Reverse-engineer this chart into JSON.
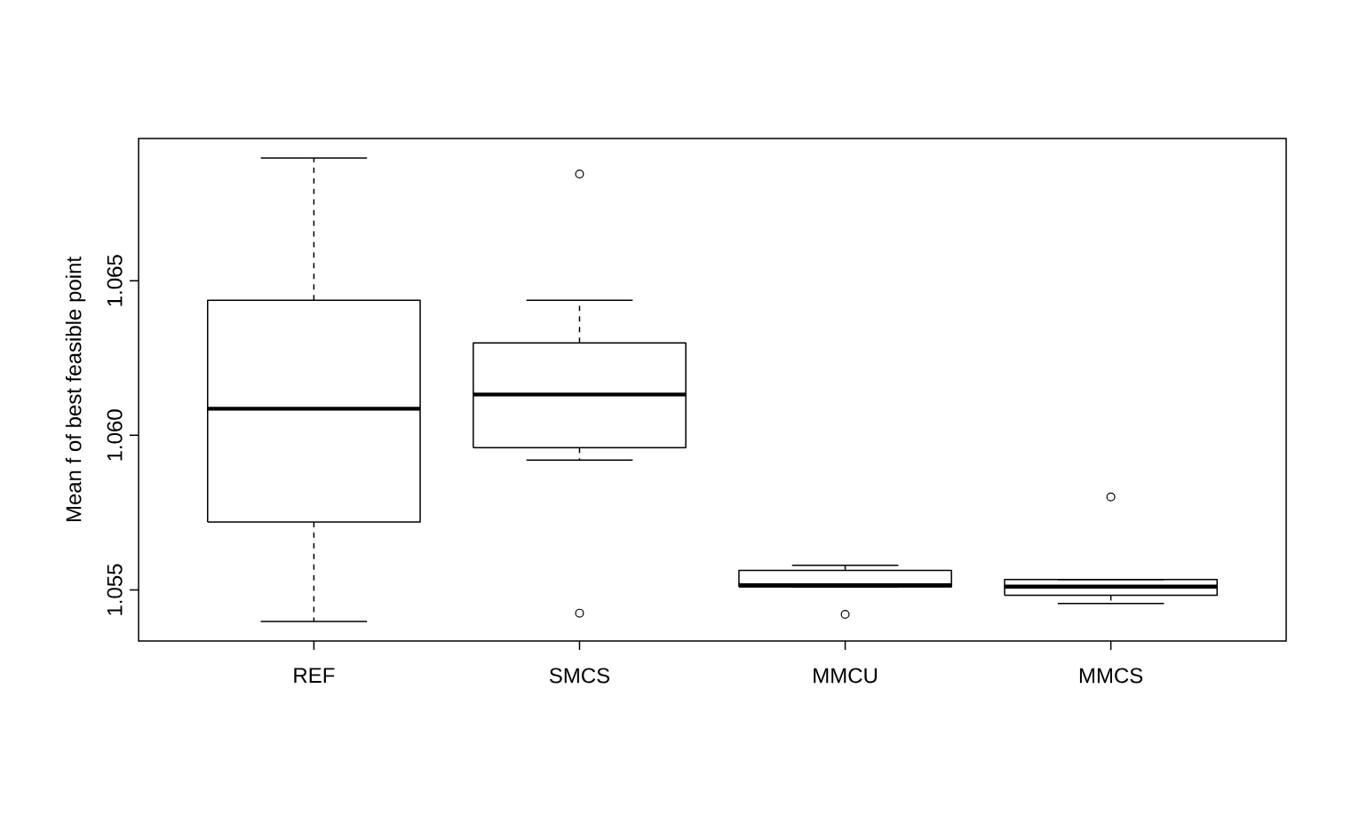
{
  "chart_data": {
    "type": "box",
    "ylabel": "Mean f of best feasible point",
    "categories": [
      "REF",
      "SMCS",
      "MMCU",
      "MMCS"
    ],
    "boxes": [
      {
        "low": 1.05398,
        "q1": 1.0572,
        "median": 1.06086,
        "q3": 1.06437,
        "high": 1.06897
      },
      {
        "low": 1.0592,
        "q1": 1.0596,
        "median": 1.06132,
        "q3": 1.06299,
        "high": 1.06437,
        "outliers": [
          1.06845,
          1.05425
        ]
      },
      {
        "low": 1.0551,
        "q1": 1.0551,
        "median": 1.05515,
        "q3": 1.05563,
        "high": 1.0558,
        "outliers": [
          1.05421
        ]
      },
      {
        "low": 1.05456,
        "q1": 1.05483,
        "median": 1.05511,
        "q3": 1.05534,
        "high": 1.05534,
        "outliers": [
          1.05801
        ]
      }
    ],
    "ylim": [
      1.05335,
      1.0696
    ],
    "yticks": [
      1.055,
      {
        "value": 1.06,
        "label": "1.060"
      },
      1.065
    ],
    "grid": false
  }
}
